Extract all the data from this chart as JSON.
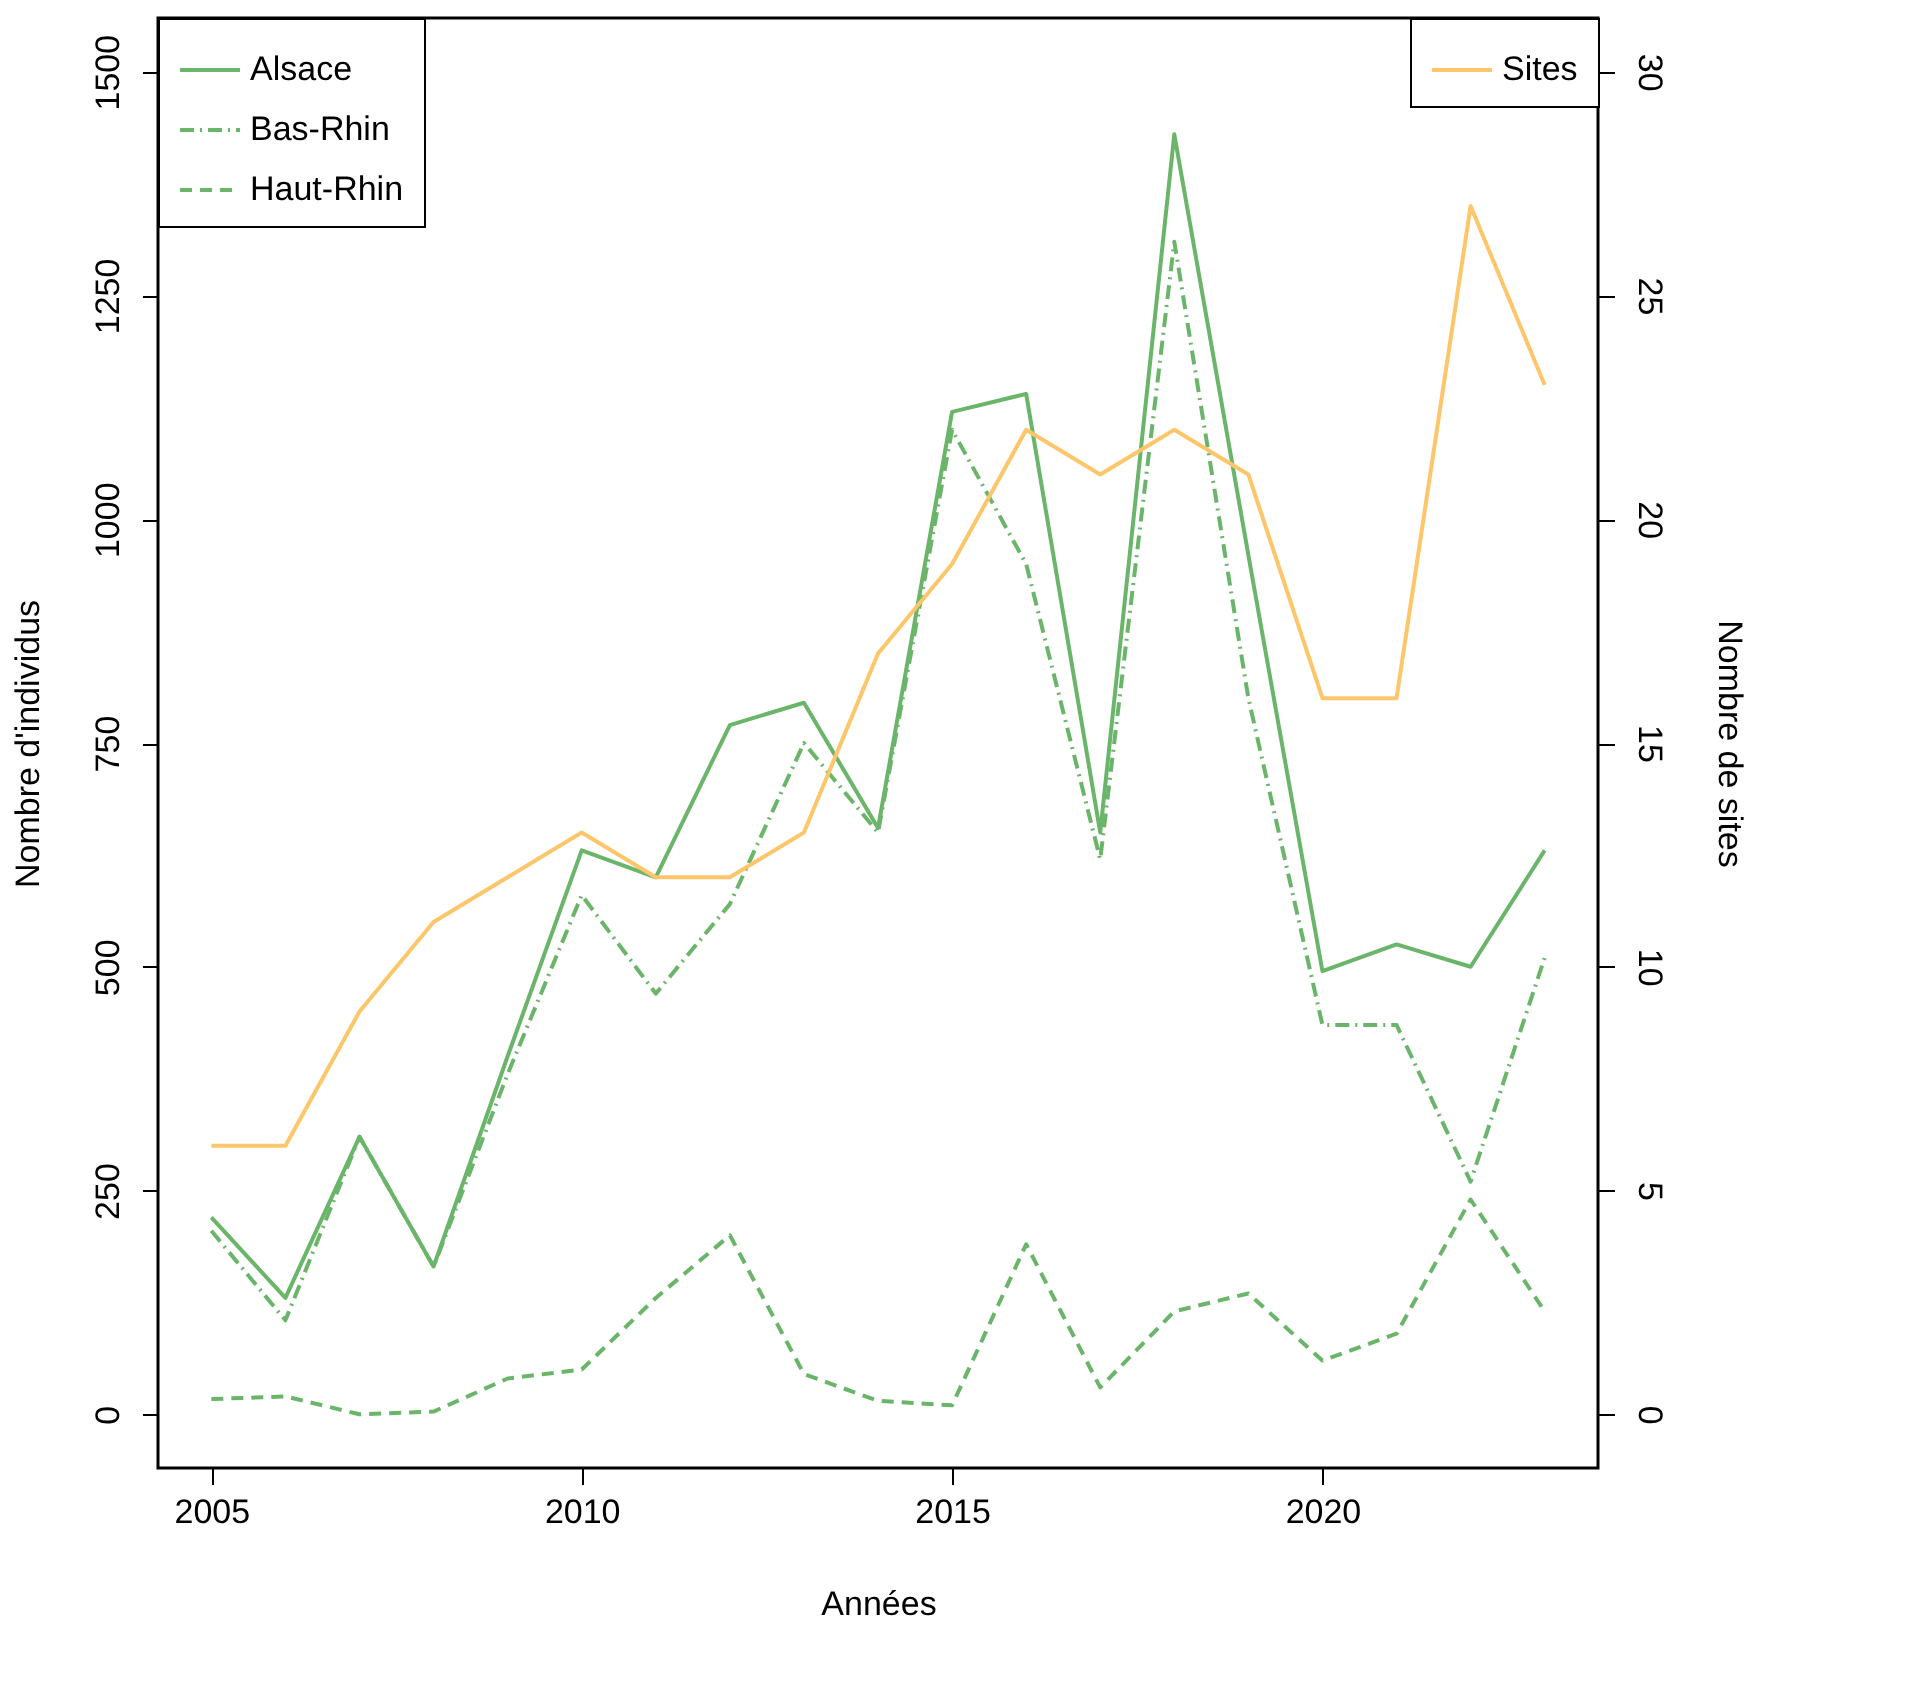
{
  "chart_data": {
    "type": "line",
    "xlabel": "Années",
    "ylabel": "Nombre d'individus",
    "y2label": "Nombre de sites",
    "x": [
      2005,
      2006,
      2007,
      2008,
      2009,
      2010,
      2011,
      2012,
      2013,
      2014,
      2015,
      2016,
      2017,
      2018,
      2019,
      2020,
      2021,
      2022,
      2023
    ],
    "series": [
      {
        "name": "Alsace",
        "color": "#6ab56a",
        "line_style": "solid",
        "values": [
          220,
          130,
          310,
          165,
          400,
          630,
          600,
          770,
          795,
          655,
          1120,
          1140,
          650,
          1430,
          960,
          495,
          525,
          500,
          630
        ]
      },
      {
        "name": "Bas-Rhin",
        "color": "#6ab56a",
        "line_style": "dashdot",
        "values": [
          205,
          105,
          310,
          165,
          380,
          580,
          470,
          570,
          750,
          650,
          1100,
          950,
          620,
          1310,
          800,
          435,
          435,
          260,
          510
        ]
      },
      {
        "name": "Haut-Rhin",
        "color": "#6ab56a",
        "line_style": "dashed",
        "values": [
          17,
          20,
          0,
          3,
          40,
          50,
          130,
          200,
          45,
          15,
          10,
          190,
          30,
          115,
          135,
          60,
          90,
          240,
          115
        ]
      },
      {
        "name": "Sites",
        "color": "#fdc66a",
        "line_style": "solid",
        "axis": "y2",
        "values": [
          6,
          6,
          9,
          11,
          12,
          13,
          12,
          12,
          13,
          17,
          19,
          22,
          21,
          22,
          21,
          16,
          16,
          27,
          23
        ]
      }
    ],
    "xlim": [
      2004.28,
      2023.72
    ],
    "xticks": [
      2005,
      2010,
      2015,
      2020
    ],
    "ylim": [
      -60,
      1560
    ],
    "yticks": [
      0,
      250,
      500,
      750,
      1000,
      1250,
      1500
    ],
    "y2lim": [
      -1.2,
      31.2
    ],
    "y2ticks": [
      0,
      5,
      10,
      15,
      20,
      25,
      30
    ],
    "grid": false,
    "legend": "top left",
    "marker": "none"
  }
}
